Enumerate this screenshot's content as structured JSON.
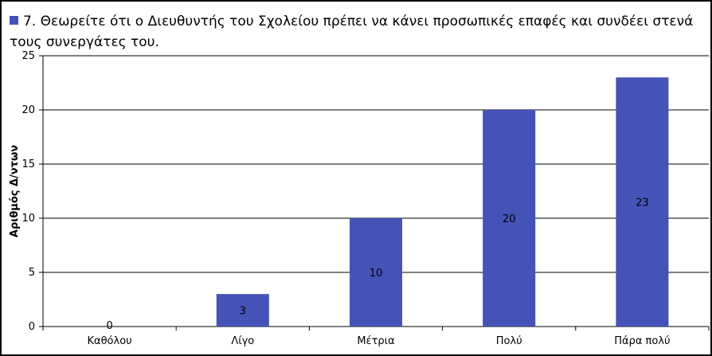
{
  "chart_data": {
    "type": "bar",
    "title": "",
    "series": [
      {
        "name": "7.  Θεωρείτε ότι  ο Διευθυντής του Σχολείου πρέπει να κάνει προσωπικές επαφές και συνδέει στενά τους συνεργάτες του.",
        "values": [
          0,
          3,
          10,
          20,
          23
        ]
      }
    ],
    "categories": [
      "Καθόλου",
      "Λίγο",
      "Μέτρια",
      "Πολύ",
      "Πάρα πολύ"
    ],
    "data_labels": [
      "0",
      "3",
      "10",
      "20",
      "23"
    ],
    "xlabel": "",
    "ylabel": "Αριθμός Δ/ντων",
    "ylim": [
      0,
      25
    ],
    "yticks": [
      0,
      5,
      10,
      15,
      20,
      25
    ],
    "grid": true,
    "legend_position": "top",
    "colors": {
      "bar": "#4553B8",
      "grid": "#000000",
      "background": "#ffffff"
    }
  }
}
